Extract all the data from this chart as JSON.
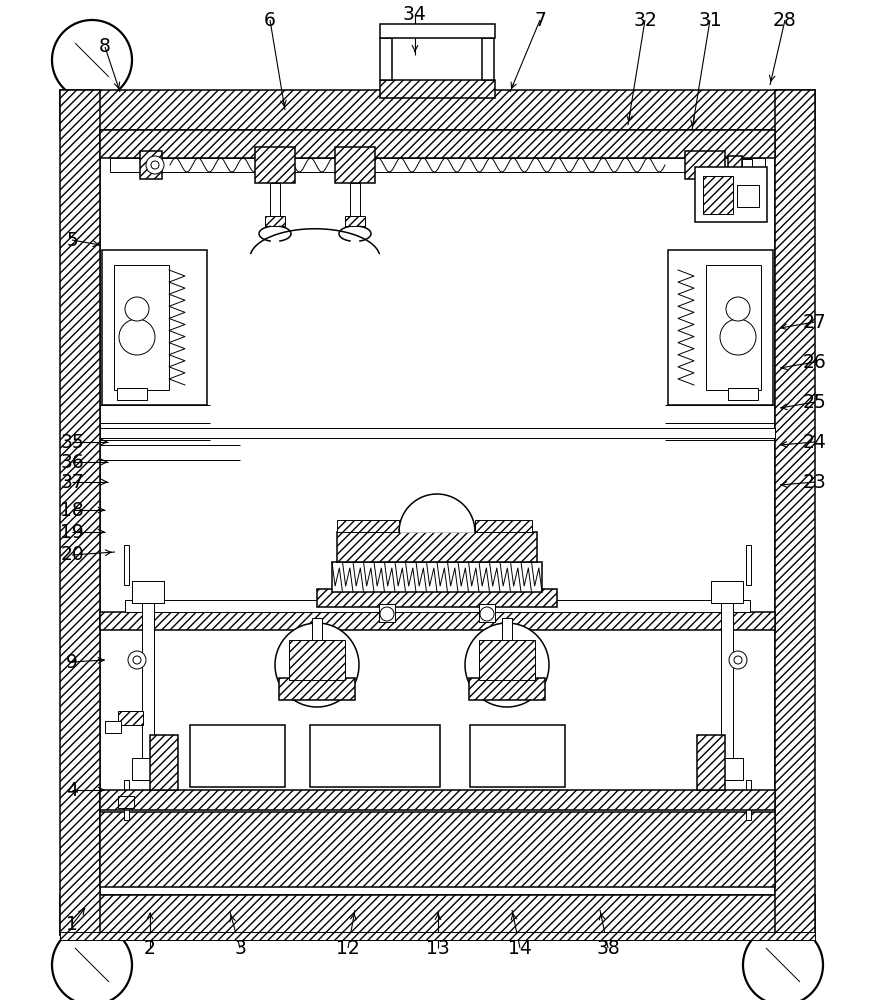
{
  "bg_color": "#ffffff",
  "lc": "#000000",
  "figsize": [
    8.74,
    10.0
  ],
  "dpi": 100,
  "OX": 60,
  "OY": 65,
  "OW": 755,
  "OH": 845,
  "wall": 40,
  "labels": {
    "8": [
      105,
      953,
      120,
      908
    ],
    "6": [
      270,
      980,
      285,
      890
    ],
    "34": [
      415,
      985,
      415,
      945
    ],
    "7": [
      540,
      980,
      510,
      908
    ],
    "32": [
      645,
      980,
      628,
      875
    ],
    "31": [
      710,
      980,
      692,
      870
    ],
    "28": [
      785,
      980,
      770,
      915
    ],
    "5": [
      72,
      760,
      100,
      755
    ],
    "27": [
      815,
      678,
      780,
      672
    ],
    "26": [
      815,
      638,
      780,
      632
    ],
    "25": [
      815,
      598,
      780,
      592
    ],
    "24": [
      815,
      558,
      780,
      555
    ],
    "23": [
      815,
      518,
      780,
      515
    ],
    "35": [
      72,
      558,
      108,
      558
    ],
    "36": [
      72,
      538,
      108,
      538
    ],
    "37": [
      72,
      518,
      108,
      518
    ],
    "18": [
      72,
      490,
      105,
      490
    ],
    "19": [
      72,
      468,
      105,
      468
    ],
    "20": [
      72,
      445,
      115,
      448
    ],
    "9": [
      72,
      338,
      105,
      340
    ],
    "4": [
      72,
      210,
      105,
      210
    ],
    "1": [
      72,
      75,
      85,
      92
    ],
    "2": [
      150,
      52,
      150,
      88
    ],
    "3": [
      240,
      52,
      230,
      88
    ],
    "12": [
      348,
      52,
      355,
      90
    ],
    "13": [
      438,
      52,
      438,
      90
    ],
    "14": [
      520,
      52,
      512,
      90
    ],
    "38": [
      608,
      52,
      600,
      90
    ]
  }
}
